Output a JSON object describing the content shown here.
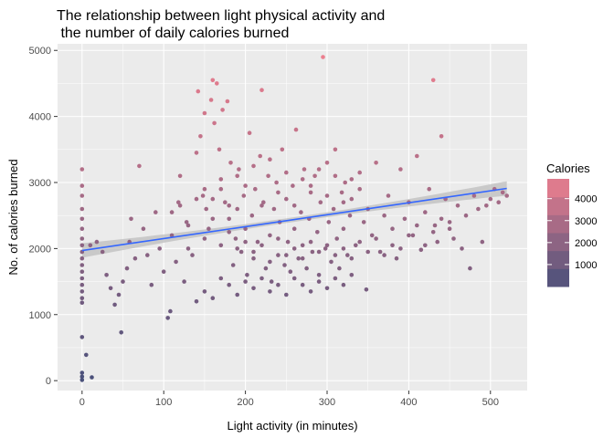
{
  "chart_data": {
    "type": "scatter",
    "title_lines": [
      "The relationship between light physical activity and",
      " the number of daily calories burned"
    ],
    "xlabel": "Light activity (in minutes)",
    "ylabel": "No. of calories burned",
    "xlim": [
      -30,
      545
    ],
    "ylim": [
      -150,
      5100
    ],
    "x_ticks": [
      0,
      100,
      200,
      300,
      400,
      500
    ],
    "y_ticks": [
      0,
      1000,
      2000,
      3000,
      4000,
      5000
    ],
    "x_tick_labels": [
      "0",
      "100",
      "200",
      "300",
      "400",
      "500"
    ],
    "y_tick_labels": [
      "0",
      "1000",
      "2000",
      "3000",
      "4000",
      "5000"
    ],
    "grid": true,
    "background": "#ebebeb",
    "color_scale": {
      "low": "#49507a",
      "high": "#ec7f8f",
      "domain": [
        0,
        4900
      ]
    },
    "legend": {
      "title": "Calories",
      "position": "right",
      "breaks": [
        4000,
        3000,
        2000,
        1000
      ],
      "labels": [
        "4000",
        "3000",
        "2000",
        "1000"
      ]
    },
    "trend_line": {
      "method": "linear",
      "color": "#3366ff",
      "band_color": "#bdbdbd",
      "points": [
        [
          0,
          1970
        ],
        [
          520,
          2910
        ]
      ],
      "ci_halfwidth_ends": 110,
      "ci_halfwidth_mid": 35
    },
    "points": [
      [
        0,
        60
      ],
      [
        0,
        120
      ],
      [
        0,
        10
      ],
      [
        0,
        660
      ],
      [
        5,
        390
      ],
      [
        12,
        50
      ],
      [
        0,
        3200
      ],
      [
        0,
        2950
      ],
      [
        0,
        2800
      ],
      [
        0,
        2600
      ],
      [
        0,
        2450
      ],
      [
        0,
        2300
      ],
      [
        0,
        2150
      ],
      [
        0,
        2050
      ],
      [
        0,
        1950
      ],
      [
        0,
        1850
      ],
      [
        0,
        1750
      ],
      [
        0,
        1650
      ],
      [
        0,
        1550
      ],
      [
        0,
        1450
      ],
      [
        0,
        1350
      ],
      [
        0,
        1250
      ],
      [
        0,
        1180
      ],
      [
        10,
        2050
      ],
      [
        18,
        2100
      ],
      [
        25,
        1950
      ],
      [
        30,
        1600
      ],
      [
        35,
        1400
      ],
      [
        40,
        1150
      ],
      [
        45,
        1300
      ],
      [
        48,
        730
      ],
      [
        50,
        1500
      ],
      [
        55,
        1700
      ],
      [
        58,
        2100
      ],
      [
        60,
        2450
      ],
      [
        65,
        1850
      ],
      [
        70,
        3250
      ],
      [
        75,
        2300
      ],
      [
        80,
        1900
      ],
      [
        85,
        1450
      ],
      [
        90,
        2550
      ],
      [
        95,
        2000
      ],
      [
        100,
        1650
      ],
      [
        105,
        950
      ],
      [
        108,
        1050
      ],
      [
        110,
        2200
      ],
      [
        115,
        1800
      ],
      [
        118,
        2700
      ],
      [
        120,
        3100
      ],
      [
        125,
        1500
      ],
      [
        128,
        2400
      ],
      [
        130,
        2000
      ],
      [
        135,
        1900
      ],
      [
        140,
        3450
      ],
      [
        142,
        4380
      ],
      [
        145,
        3700
      ],
      [
        148,
        2800
      ],
      [
        150,
        4050
      ],
      [
        152,
        2600
      ],
      [
        155,
        2300
      ],
      [
        158,
        4250
      ],
      [
        160,
        4550
      ],
      [
        162,
        3900
      ],
      [
        165,
        4500
      ],
      [
        168,
        3500
      ],
      [
        170,
        2900
      ],
      [
        172,
        4100
      ],
      [
        175,
        2700
      ],
      [
        178,
        4230
      ],
      [
        180,
        2450
      ],
      [
        182,
        3300
      ],
      [
        185,
        1750
      ],
      [
        188,
        2150
      ],
      [
        190,
        2600
      ],
      [
        192,
        3200
      ],
      [
        195,
        1950
      ],
      [
        198,
        2800
      ],
      [
        200,
        2300
      ],
      [
        202,
        1600
      ],
      [
        205,
        3750
      ],
      [
        208,
        2500
      ],
      [
        210,
        1850
      ],
      [
        212,
        2900
      ],
      [
        215,
        2100
      ],
      [
        218,
        3400
      ],
      [
        220,
        4400
      ],
      [
        222,
        2700
      ],
      [
        225,
        1700
      ],
      [
        228,
        3100
      ],
      [
        230,
        2200
      ],
      [
        232,
        1500
      ],
      [
        235,
        2600
      ],
      [
        238,
        3000
      ],
      [
        240,
        1900
      ],
      [
        242,
        2400
      ],
      [
        245,
        3500
      ],
      [
        248,
        1750
      ],
      [
        250,
        2750
      ],
      [
        252,
        2100
      ],
      [
        255,
        1650
      ],
      [
        258,
        2950
      ],
      [
        260,
        2300
      ],
      [
        262,
        3800
      ],
      [
        265,
        1850
      ],
      [
        268,
        2550
      ],
      [
        270,
        2050
      ],
      [
        272,
        3200
      ],
      [
        275,
        1700
      ],
      [
        278,
        2450
      ],
      [
        280,
        2850
      ],
      [
        282,
        1950
      ],
      [
        285,
        3100
      ],
      [
        288,
        2250
      ],
      [
        290,
        1600
      ],
      [
        292,
        2700
      ],
      [
        295,
        4900
      ],
      [
        298,
        2000
      ],
      [
        300,
        3300
      ],
      [
        302,
        2400
      ],
      [
        305,
        1800
      ],
      [
        308,
        2600
      ],
      [
        310,
        3500
      ],
      [
        312,
        2150
      ],
      [
        315,
        1700
      ],
      [
        318,
        2850
      ],
      [
        320,
        2300
      ],
      [
        322,
        3000
      ],
      [
        325,
        1900
      ],
      [
        328,
        2500
      ],
      [
        330,
        2750
      ],
      [
        335,
        2050
      ],
      [
        340,
        3150
      ],
      [
        345,
        2400
      ],
      [
        348,
        1380
      ],
      [
        350,
        2600
      ],
      [
        355,
        2200
      ],
      [
        360,
        3300
      ],
      [
        365,
        1950
      ],
      [
        370,
        2500
      ],
      [
        375,
        2800
      ],
      [
        380,
        2050
      ],
      [
        385,
        1850
      ],
      [
        390,
        3200
      ],
      [
        395,
        2450
      ],
      [
        400,
        2700
      ],
      [
        405,
        2200
      ],
      [
        410,
        3400
      ],
      [
        415,
        1980
      ],
      [
        420,
        2550
      ],
      [
        425,
        2900
      ],
      [
        430,
        4550
      ],
      [
        432,
        2350
      ],
      [
        435,
        2100
      ],
      [
        440,
        3700
      ],
      [
        445,
        2750
      ],
      [
        450,
        2400
      ],
      [
        455,
        2150
      ],
      [
        460,
        2650
      ],
      [
        465,
        2000
      ],
      [
        470,
        2500
      ],
      [
        475,
        1700
      ],
      [
        480,
        2800
      ],
      [
        485,
        2600
      ],
      [
        490,
        2100
      ],
      [
        495,
        2650
      ],
      [
        500,
        2750
      ],
      [
        505,
        2900
      ],
      [
        510,
        2700
      ],
      [
        515,
        2850
      ],
      [
        520,
        2800
      ],
      [
        140,
        1200
      ],
      [
        150,
        1350
      ],
      [
        160,
        1250
      ],
      [
        170,
        1550
      ],
      [
        180,
        1450
      ],
      [
        190,
        1300
      ],
      [
        200,
        1500
      ],
      [
        210,
        1400
      ],
      [
        220,
        1550
      ],
      [
        230,
        1350
      ],
      [
        240,
        1450
      ],
      [
        250,
        1300
      ],
      [
        260,
        1550
      ],
      [
        270,
        1450
      ],
      [
        280,
        1350
      ],
      [
        290,
        1500
      ],
      [
        300,
        1400
      ],
      [
        310,
        1550
      ],
      [
        320,
        1450
      ],
      [
        330,
        1600
      ],
      [
        150,
        2900
      ],
      [
        160,
        2750
      ],
      [
        170,
        3050
      ],
      [
        180,
        2650
      ],
      [
        190,
        3100
      ],
      [
        200,
        2950
      ],
      [
        210,
        3250
      ],
      [
        220,
        2650
      ],
      [
        230,
        3350
      ],
      [
        240,
        2850
      ],
      [
        250,
        3150
      ],
      [
        260,
        2650
      ],
      [
        270,
        3050
      ],
      [
        280,
        2950
      ],
      [
        290,
        3200
      ],
      [
        300,
        2800
      ],
      [
        310,
        3100
      ],
      [
        320,
        2700
      ],
      [
        330,
        3050
      ],
      [
        340,
        2900
      ],
      [
        110,
        2550
      ],
      [
        120,
        2650
      ],
      [
        130,
        2350
      ],
      [
        140,
        2750
      ],
      [
        150,
        2150
      ],
      [
        160,
        2450
      ],
      [
        170,
        2050
      ],
      [
        180,
        2250
      ],
      [
        190,
        2000
      ],
      [
        200,
        2100
      ],
      [
        210,
        1950
      ],
      [
        220,
        2050
      ],
      [
        230,
        1800
      ],
      [
        240,
        2150
      ],
      [
        250,
        1900
      ],
      [
        260,
        2000
      ],
      [
        270,
        1850
      ],
      [
        280,
        2100
      ],
      [
        290,
        1950
      ],
      [
        300,
        2050
      ],
      [
        310,
        1900
      ],
      [
        320,
        2000
      ],
      [
        330,
        1850
      ],
      [
        340,
        2100
      ],
      [
        350,
        1950
      ],
      [
        360,
        2150
      ],
      [
        370,
        1900
      ],
      [
        380,
        2300
      ],
      [
        390,
        2000
      ],
      [
        400,
        2200
      ],
      [
        410,
        2350
      ],
      [
        420,
        2050
      ],
      [
        430,
        2250
      ],
      [
        440,
        2450
      ],
      [
        450,
        2300
      ]
    ]
  }
}
